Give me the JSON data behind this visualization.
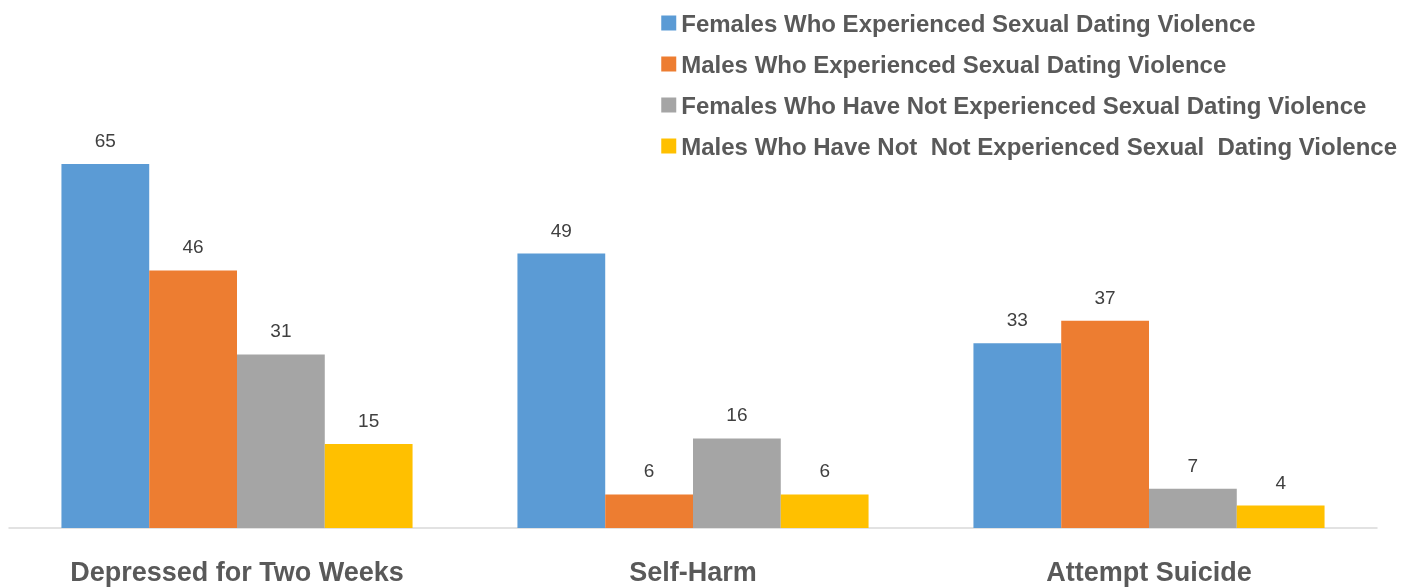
{
  "chart_data": {
    "type": "bar",
    "categories": [
      "Depressed for Two Weeks",
      "Self-Harm",
      "Attempt Suicide"
    ],
    "series": [
      {
        "name": "Females Who Experienced Sexual Dating Violence",
        "color": "#5b9bd5",
        "values": [
          65,
          49,
          33
        ]
      },
      {
        "name": "Males Who Experienced Sexual Dating Violence",
        "color": "#ed7d31",
        "values": [
          46,
          6,
          37
        ]
      },
      {
        "name": "Females Who Have Not Experienced Sexual Dating Violence",
        "color": "#a5a5a5",
        "values": [
          31,
          16,
          7
        ]
      },
      {
        "name": "Males Who Have Not  Not Experienced Sexual  Dating Violence",
        "color": "#ffc000",
        "values": [
          15,
          6,
          4
        ]
      }
    ],
    "data_labels": true,
    "legend": "top right"
  }
}
